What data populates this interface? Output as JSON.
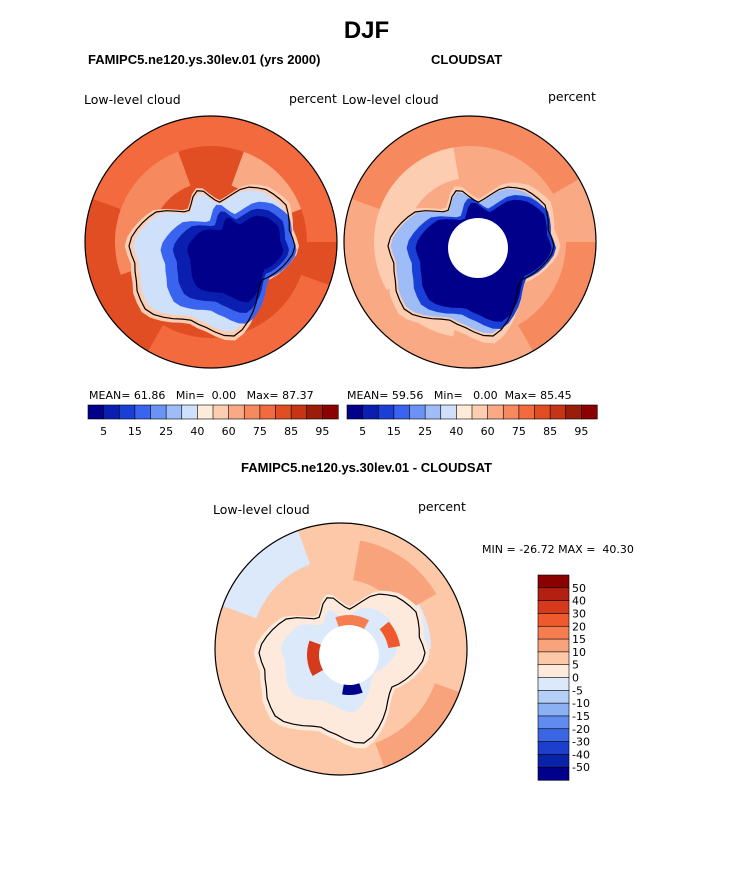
{
  "page": {
    "title": "DJF",
    "panel_left_title": "FAMIPC5.ne120.ys.30lev.01 (yrs 2000)",
    "panel_right_title": "CLOUDSAT",
    "panel_diff_title": "FAMIPC5.ne120.ys.30lev.01 - CLOUDSAT"
  },
  "chart_data": [
    {
      "type": "heatmap",
      "projection": "south-polar-stereographic",
      "title": "FAMIPC5.ne120.ys.30lev.01 (yrs 2000)",
      "variable": "Low-level cloud",
      "units": "percent",
      "stats": {
        "mean_label": "MEAN=",
        "mean": "61.86",
        "min_label": "Min=",
        "min": "0.00",
        "max_label": "Max=",
        "max": "87.37"
      },
      "colorbar": {
        "orientation": "horizontal",
        "tick_labels": [
          "5",
          "15",
          "25",
          "40",
          "60",
          "75",
          "85",
          "95"
        ],
        "colors": [
          "#00008b",
          "#0a1fb0",
          "#1a3fd6",
          "#3a64f0",
          "#6a93f5",
          "#9dbcf8",
          "#cfe0fb",
          "#fdebd9",
          "#fccdb0",
          "#f9aa85",
          "#f7895f",
          "#f26a3e",
          "#e24e24",
          "#c63416",
          "#9c1c0a",
          "#8b0000"
        ]
      }
    },
    {
      "type": "heatmap",
      "projection": "south-polar-stereographic",
      "title": "CLOUDSAT",
      "variable": "Low-level cloud",
      "units": "percent",
      "stats": {
        "mean_label": "MEAN=",
        "mean": "59.56",
        "min_label": "Min=",
        "min": "0.00",
        "max_label": "Max=",
        "max": "85.45"
      },
      "colorbar": {
        "orientation": "horizontal",
        "tick_labels": [
          "5",
          "15",
          "25",
          "40",
          "60",
          "75",
          "85",
          "95"
        ],
        "colors": [
          "#00008b",
          "#0a1fb0",
          "#1a3fd6",
          "#3a64f0",
          "#6a93f5",
          "#9dbcf8",
          "#cfe0fb",
          "#fdebd9",
          "#fccdb0",
          "#f9aa85",
          "#f7895f",
          "#f26a3e",
          "#e24e24",
          "#c63416",
          "#9c1c0a",
          "#8b0000"
        ]
      }
    },
    {
      "type": "heatmap",
      "projection": "south-polar-stereographic",
      "title": "FAMIPC5.ne120.ys.30lev.01 - CLOUDSAT",
      "variable": "Low-level cloud",
      "units": "percent",
      "stats": {
        "min_label": "MIN =",
        "min": "-26.72",
        "max_label": "MAX =",
        "max": "40.30"
      },
      "colorbar": {
        "orientation": "vertical",
        "tick_labels": [
          "50",
          "40",
          "30",
          "20",
          "15",
          "10",
          "5",
          "0",
          "-5",
          "-10",
          "-15",
          "-20",
          "-30",
          "-40",
          "-50"
        ],
        "colors": [
          "#8b0000",
          "#b32012",
          "#d63a1c",
          "#ee5a2e",
          "#f67d50",
          "#f9a37c",
          "#fcc8a8",
          "#fdeadc",
          "#dbe9fa",
          "#b5cff7",
          "#8cb1f3",
          "#5f8cee",
          "#3a66e6",
          "#1c40cc",
          "#0a22a8",
          "#00008b"
        ]
      }
    }
  ]
}
